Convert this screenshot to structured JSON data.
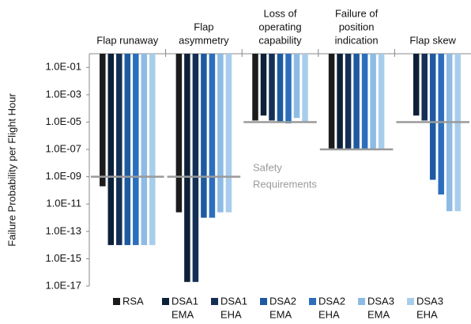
{
  "chart_data": {
    "type": "bar",
    "log_scale": true,
    "bars_hang_from_top": true,
    "y_axis_label": "Failure Probability per Flight Hour",
    "categories": [
      [
        "Flap runaway"
      ],
      [
        "Flap",
        "asymmetry"
      ],
      [
        "Loss of",
        "operating",
        "capability"
      ],
      [
        "Failure of",
        "position",
        "indication"
      ],
      [
        "Flap skew"
      ]
    ],
    "ylim": [
      1e-17,
      1
    ],
    "yticks": [
      {
        "value": 0.1,
        "label": "1.0E-01"
      },
      {
        "value": 0.001,
        "label": "1.0E-03"
      },
      {
        "value": 1e-05,
        "label": "1.0E-05"
      },
      {
        "value": 1e-07,
        "label": "1.0E-07"
      },
      {
        "value": 1e-09,
        "label": "1.0E-09"
      },
      {
        "value": 1e-11,
        "label": "1.0E-11"
      },
      {
        "value": 1e-13,
        "label": "1.0E-13"
      },
      {
        "value": 1e-15,
        "label": "1.0E-15"
      },
      {
        "value": 1e-17,
        "label": "1.0E-17"
      }
    ],
    "series": [
      {
        "name": [
          "RSA"
        ],
        "color": "#1c1c1c",
        "values": [
          2e-10,
          2.5e-12,
          1.3e-05,
          1e-07,
          null
        ]
      },
      {
        "name": [
          "DSA1",
          "EMA"
        ],
        "color": "#0c2038",
        "values": [
          1e-14,
          2e-17,
          3e-05,
          1e-07,
          3e-05
        ]
      },
      {
        "name": [
          "DSA1",
          "EHA"
        ],
        "color": "#142f55",
        "values": [
          1e-14,
          2e-17,
          1.3e-05,
          1e-07,
          1.3e-05
        ]
      },
      {
        "name": [
          "DSA2",
          "EMA"
        ],
        "color": "#1d5aa0",
        "values": [
          1e-14,
          1e-12,
          1e-05,
          1e-07,
          6e-10
        ]
      },
      {
        "name": [
          "DSA2",
          "EHA"
        ],
        "color": "#2b6ebd",
        "values": [
          1e-14,
          1e-12,
          8e-06,
          1e-07,
          5e-11
        ]
      },
      {
        "name": [
          "DSA3",
          "EMA"
        ],
        "color": "#8dbbe4",
        "values": [
          1e-14,
          2.5e-12,
          2e-05,
          1e-07,
          3e-12
        ]
      },
      {
        "name": [
          "DSA3",
          "EHA"
        ],
        "color": "#a8cdec",
        "values": [
          1e-14,
          2.5e-12,
          1e-05,
          1e-07,
          3e-12
        ]
      }
    ],
    "requirements": {
      "label": [
        "Safety",
        "Requirements"
      ],
      "color": "#9a9a9a",
      "values": [
        1e-09,
        1e-09,
        1e-05,
        1e-07,
        1e-05
      ]
    }
  }
}
